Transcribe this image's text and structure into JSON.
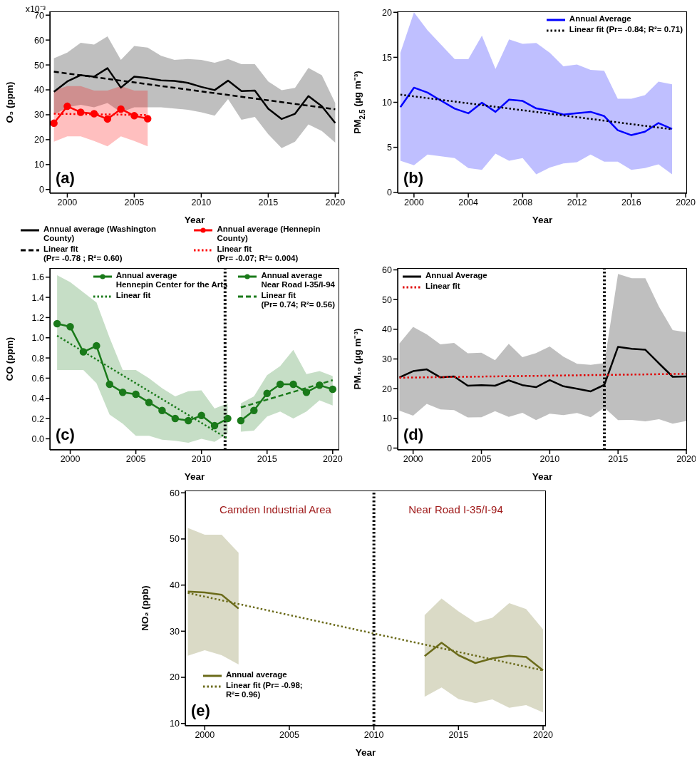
{
  "chart_data": [
    {
      "type": "line",
      "xlabel": "Year",
      "ylabel": "O₃ (ppm)",
      "xlim": [
        1998.7,
        2020.3
      ],
      "xticks": [
        2000,
        2005,
        2010,
        2015,
        2020
      ],
      "ylim": [
        -1.5,
        71.5
      ],
      "yticks": [
        0,
        10,
        20,
        30,
        40,
        50,
        60,
        70
      ],
      "legend": "bottom",
      "annotations": [
        "(a)",
        "x10⁻³"
      ],
      "series": [
        {
          "name": "Annual average (Washington County)",
          "color": "#000000",
          "marker": "none",
          "line_style": "solid",
          "x": [
            1999,
            2000,
            2001,
            2002,
            2003,
            2004,
            2005,
            2006,
            2007,
            2008,
            2009,
            2010,
            2011,
            2012,
            2013,
            2014,
            2015,
            2016,
            2017,
            2018,
            2019,
            2020
          ],
          "values": [
            39.2,
            43.4,
            45.9,
            45.3,
            48.7,
            40.9,
            45.3,
            44.7,
            43.8,
            43.6,
            42.8,
            41.2,
            39.9,
            43.7,
            39.5,
            39.7,
            32.4,
            28.3,
            30.4,
            37.5,
            33.4,
            26.7
          ],
          "lower": [
            30,
            33,
            34,
            33,
            34.7,
            31,
            33,
            33,
            33,
            32.5,
            32,
            31,
            29.6,
            36.3,
            28,
            29.1,
            22.2,
            16.6,
            19.2,
            26.1,
            23.5,
            18.8
          ],
          "upper": [
            52.7,
            55,
            58.9,
            58.2,
            61.5,
            52,
            57.6,
            57,
            53.7,
            52,
            52.4,
            52,
            50.9,
            52.4,
            50.3,
            50.3,
            43.4,
            39.9,
            40.8,
            48.8,
            45.9,
            34.7
          ]
        },
        {
          "name": "Linear fit\n(Pr= -0.78 ; R²= 0.60)",
          "color": "#000000",
          "marker": "none",
          "line_style": "dashed",
          "x": [
            1999,
            2020
          ],
          "values": [
            47.3,
            32.2
          ]
        },
        {
          "name": "Annual average (Hennepin County)",
          "color": "#ff0000",
          "marker": "circle",
          "line_style": "solid",
          "x": [
            1999,
            2000,
            2001,
            2002,
            2003,
            2004,
            2005,
            2006
          ],
          "values": [
            26.6,
            33.4,
            31,
            30.4,
            28.3,
            32.3,
            29.6,
            28.4
          ],
          "lower": [
            19.2,
            21.3,
            21.3,
            19.5,
            17.3,
            21.3,
            19.5,
            17.3
          ],
          "upper": [
            39.7,
            41.5,
            41.5,
            39.7,
            39.7,
            41.5,
            39.7,
            39.7
          ]
        },
        {
          "name": "Linear fit\n(Pr= -0.07; R²= 0.004)",
          "color": "#ff0000",
          "marker": "none",
          "line_style": "dotted",
          "x": [
            1999,
            2006
          ],
          "values": [
            30.4,
            29.9
          ]
        }
      ]
    },
    {
      "type": "line",
      "xlabel": "Year",
      "ylabel": "PM$_{2.5}$ (µg m⁻³)",
      "xlim": [
        1998.8,
        2020.1
      ],
      "xticks": [
        2000,
        2004,
        2008,
        2012,
        2016,
        2020
      ],
      "ylim": [
        -0.1,
        20.1
      ],
      "yticks": [
        0,
        5,
        10,
        15,
        20
      ],
      "legend": "top right",
      "annotations": [
        "(b)"
      ],
      "series": [
        {
          "name": "Annual Average",
          "color": "#0000ff",
          "marker": "none",
          "line_style": "solid",
          "x": [
            1999,
            2000,
            2001,
            2002,
            2003,
            2004,
            2005,
            2006,
            2007,
            2008,
            2009,
            2010,
            2011,
            2012,
            2013,
            2014,
            2015,
            2016,
            2017,
            2018,
            2019
          ],
          "values": [
            9.46,
            11.63,
            11.08,
            10.18,
            9.3,
            8.78,
            9.96,
            8.94,
            10.3,
            10.15,
            9.32,
            9.06,
            8.63,
            8.8,
            8.94,
            8.47,
            6.9,
            6.35,
            6.73,
            7.7,
            7.04
          ],
          "lower": [
            3.5,
            3.0,
            4.2,
            4.0,
            3.8,
            2.7,
            2.5,
            4.3,
            3.5,
            3.8,
            2.0,
            2.76,
            3.2,
            3.35,
            4.2,
            3.4,
            3.4,
            2.5,
            2.7,
            3.1,
            2.0
          ],
          "upper": [
            15.5,
            20.0,
            18.0,
            16.4,
            14.8,
            14.8,
            17.4,
            13.7,
            17.0,
            16.5,
            16.6,
            15.5,
            14.0,
            14.2,
            13.6,
            13.5,
            10.4,
            10.4,
            10.8,
            12.3,
            12.0
          ]
        },
        {
          "name": "Linear fit (Pr= -0.84; R²= 0.71)",
          "color": "#000000",
          "marker": "none",
          "line_style": "dotted",
          "x": [
            1999,
            2019
          ],
          "values": [
            10.85,
            7.0
          ]
        }
      ]
    },
    {
      "type": "line",
      "xlabel": "Year",
      "ylabel": "CO (ppm)",
      "xlim": [
        1998.45,
        2020.5
      ],
      "xticks": [
        2000,
        2005,
        2010,
        2015,
        2020
      ],
      "ylim": [
        -0.11,
        1.69
      ],
      "yticks": [
        {
          "value": 0,
          "label": "0.0"
        },
        0.2,
        0.4,
        0.6,
        0.8,
        {
          "value": 1,
          "label": "1.0"
        },
        1.2,
        1.4,
        1.6
      ],
      "legend": "top right",
      "annotations": [
        "(c)"
      ],
      "ref_lines": [
        {
          "axis": "x",
          "value": 2011.8,
          "color": "#000000",
          "line_style": "dotted"
        }
      ],
      "series": [
        {
          "name": "Annual average\nHennepin Center for the Arts",
          "color": "#1a7a1a",
          "marker": "circle",
          "line_style": "solid",
          "x": [
            1999,
            2000,
            2001,
            2002,
            2003,
            2004,
            2005,
            2006,
            2007,
            2008,
            2009,
            2010,
            2011,
            2012
          ],
          "values": [
            1.14,
            1.11,
            0.86,
            0.92,
            0.54,
            0.46,
            0.44,
            0.36,
            0.28,
            0.2,
            0.18,
            0.23,
            0.13,
            0.2
          ],
          "lower": [
            0.68,
            0.68,
            0.68,
            0.55,
            0.24,
            0.15,
            0.03,
            0.03,
            -0.01,
            -0.02,
            -0.04,
            0.0,
            -0.03,
            0.05
          ],
          "upper": [
            1.62,
            1.55,
            1.45,
            1.35,
            1.0,
            0.68,
            0.68,
            0.6,
            0.5,
            0.42,
            0.47,
            0.48,
            0.3,
            0.35
          ]
        },
        {
          "name": "Linear fit",
          "color": "#1a7a1a",
          "marker": "none",
          "line_style": "dotted",
          "x": [
            1999,
            2012
          ],
          "values": [
            1.02,
            0.0
          ]
        },
        {
          "name": "Annual average\nNear Road I-35/I-94",
          "color": "#1a7a1a",
          "marker": "circle",
          "line_style": "solid",
          "x": [
            2013,
            2014,
            2015,
            2016,
            2017,
            2018,
            2019,
            2020
          ],
          "values": [
            0.18,
            0.28,
            0.45,
            0.54,
            0.54,
            0.46,
            0.53,
            0.49
          ],
          "lower": [
            0.07,
            0.08,
            0.22,
            0.27,
            0.2,
            0.27,
            0.38,
            0.33
          ],
          "upper": [
            0.35,
            0.42,
            0.63,
            0.72,
            0.88,
            0.64,
            0.67,
            0.62
          ]
        },
        {
          "name": "Linear fit\n(Pr= 0.74; R²= 0.56)",
          "color": "#1a7a1a",
          "marker": "none",
          "line_style": "dashed",
          "x": [
            2013,
            2020
          ],
          "values": [
            0.31,
            0.58
          ]
        }
      ]
    },
    {
      "type": "line",
      "xlabel": "Year",
      "ylabel": "PM₁₀ (µg m⁻³)",
      "xlim": [
        1998.87,
        2020.05
      ],
      "xticks": [
        2000,
        2005,
        2010,
        2015,
        2020
      ],
      "ylim": [
        -0.6,
        60.6
      ],
      "yticks": [
        0,
        10,
        20,
        30,
        40,
        50,
        60
      ],
      "legend": "top left",
      "annotations": [
        "(d)"
      ],
      "ref_lines": [
        {
          "axis": "x",
          "value": 2014,
          "color": "#000000",
          "line_style": "dotted"
        }
      ],
      "series": [
        {
          "name": "Annual Average",
          "color": "#000000",
          "marker": "none",
          "line_style": "solid",
          "x": [
            1999,
            2000,
            2001,
            2002,
            2003,
            2004,
            2005,
            2006,
            2007,
            2008,
            2009,
            2010,
            2011,
            2012,
            2013,
            2014,
            2015,
            2016,
            2017,
            2018,
            2019,
            2020
          ],
          "values": [
            23.8,
            25.9,
            26.5,
            23.8,
            24.1,
            21,
            21.2,
            21,
            22.8,
            21.2,
            20.5,
            22.9,
            20.8,
            20,
            19.1,
            21.3,
            34.1,
            33.4,
            33.1,
            28.5,
            24,
            24.1
          ],
          "lower": [
            12.6,
            10.9,
            14.9,
            13,
            12.8,
            10.3,
            10.4,
            12.4,
            10.5,
            11.9,
            9.4,
            11.6,
            11.1,
            11.8,
            10.4,
            13.6,
            9.4,
            9.5,
            9,
            9.7,
            8.2,
            9.1
          ],
          "upper": [
            35.2,
            40.8,
            38.3,
            34.9,
            35.4,
            31.9,
            32.1,
            29.6,
            35.1,
            30.6,
            32,
            34.2,
            30.8,
            28.4,
            28,
            28.6,
            58.6,
            57.2,
            57.2,
            47.6,
            39.7,
            39
          ]
        },
        {
          "name": "Linear fit",
          "color": "#e00000",
          "marker": "none",
          "line_style": "dotted",
          "x": [
            1999,
            2020
          ],
          "values": [
            23.7,
            25.0
          ]
        }
      ]
    },
    {
      "type": "line",
      "xlabel": "Year",
      "ylabel": "NO₂ (ppb)",
      "xlim": [
        1998.85,
        2020.17
      ],
      "xticks": [
        2000,
        2005,
        2010,
        2015,
        2020
      ],
      "ylim": [
        9.5,
        60.5
      ],
      "yticks": [
        10,
        20,
        30,
        40,
        50,
        60
      ],
      "legend": "bottom left",
      "annotations": [
        "(e)",
        "Camden Industrial Area",
        "Near Road I-35/I-94"
      ],
      "ref_lines": [
        {
          "axis": "x",
          "value": 2010,
          "color": "#000000",
          "line_style": "dotted"
        }
      ],
      "series": [
        {
          "name": "Annual average",
          "color": "#6b6b1a",
          "marker": "none",
          "line_style": "solid",
          "x": [
            1999,
            2000,
            2001,
            2002
          ],
          "values": [
            38.6,
            38.4,
            37.9,
            34.9
          ],
          "lower": [
            24.7,
            25.9,
            24.8,
            22.8
          ],
          "upper": [
            52.4,
            50.9,
            50.9,
            47
          ]
        },
        {
          "color": "#6b6b1a",
          "marker": "none",
          "line_style": "solid",
          "x": [
            2013,
            2014,
            2015,
            2016,
            2017,
            2018,
            2019,
            2020
          ],
          "values": [
            24.6,
            27.5,
            24.8,
            23.1,
            24.1,
            24.7,
            24.4,
            21.5
          ],
          "lower": [
            15.8,
            17.8,
            15.3,
            14.4,
            15.2,
            13.4,
            14,
            12.4
          ],
          "upper": [
            33.5,
            37.1,
            34.3,
            31.9,
            32.9,
            36.1,
            34.8,
            30.4
          ]
        },
        {
          "name": "Linear fit (Pr= -0.98;\nR²= 0.96)",
          "color": "#6b6b1a",
          "marker": "none",
          "line_style": "dotted",
          "x": [
            1999,
            2020
          ],
          "values": [
            38.3,
            21.5
          ]
        }
      ]
    }
  ]
}
